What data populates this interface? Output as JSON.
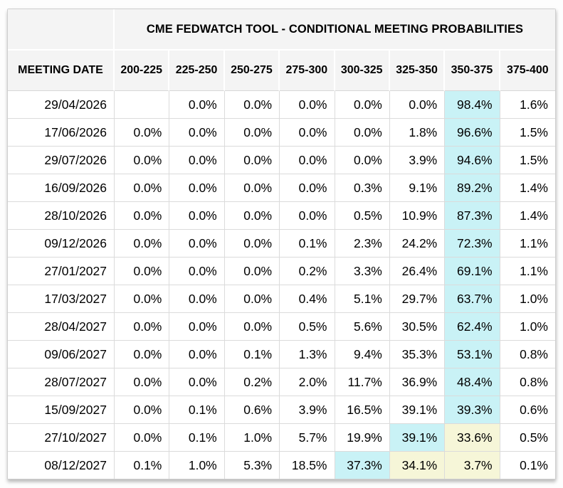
{
  "chart_data": {
    "type": "table",
    "title": "CME FEDWATCH TOOL - CONDITIONAL MEETING PROBABILITIES",
    "row_header_label": "MEETING DATE",
    "rate_bins": [
      "200-225",
      "225-250",
      "250-275",
      "275-300",
      "300-325",
      "325-350",
      "350-375",
      "375-400"
    ],
    "rows": [
      {
        "date": "29/04/2026",
        "values": [
          "",
          "0.0%",
          "0.0%",
          "0.0%",
          "0.0%",
          "0.0%",
          "98.4%",
          "1.6%"
        ],
        "highlights": [
          "",
          "",
          "",
          "",
          "",
          "",
          "cyan",
          ""
        ]
      },
      {
        "date": "17/06/2026",
        "values": [
          "0.0%",
          "0.0%",
          "0.0%",
          "0.0%",
          "0.0%",
          "1.8%",
          "96.6%",
          "1.5%"
        ],
        "highlights": [
          "",
          "",
          "",
          "",
          "",
          "",
          "cyan",
          ""
        ]
      },
      {
        "date": "29/07/2026",
        "values": [
          "0.0%",
          "0.0%",
          "0.0%",
          "0.0%",
          "0.0%",
          "3.9%",
          "94.6%",
          "1.5%"
        ],
        "highlights": [
          "",
          "",
          "",
          "",
          "",
          "",
          "cyan",
          ""
        ]
      },
      {
        "date": "16/09/2026",
        "values": [
          "0.0%",
          "0.0%",
          "0.0%",
          "0.0%",
          "0.3%",
          "9.1%",
          "89.2%",
          "1.4%"
        ],
        "highlights": [
          "",
          "",
          "",
          "",
          "",
          "",
          "cyan",
          ""
        ]
      },
      {
        "date": "28/10/2026",
        "values": [
          "0.0%",
          "0.0%",
          "0.0%",
          "0.0%",
          "0.5%",
          "10.9%",
          "87.3%",
          "1.4%"
        ],
        "highlights": [
          "",
          "",
          "",
          "",
          "",
          "",
          "cyan",
          ""
        ]
      },
      {
        "date": "09/12/2026",
        "values": [
          "0.0%",
          "0.0%",
          "0.0%",
          "0.1%",
          "2.3%",
          "24.2%",
          "72.3%",
          "1.1%"
        ],
        "highlights": [
          "",
          "",
          "",
          "",
          "",
          "",
          "cyan",
          ""
        ]
      },
      {
        "date": "27/01/2027",
        "values": [
          "0.0%",
          "0.0%",
          "0.0%",
          "0.2%",
          "3.3%",
          "26.4%",
          "69.1%",
          "1.1%"
        ],
        "highlights": [
          "",
          "",
          "",
          "",
          "",
          "",
          "cyan",
          ""
        ]
      },
      {
        "date": "17/03/2027",
        "values": [
          "0.0%",
          "0.0%",
          "0.0%",
          "0.4%",
          "5.1%",
          "29.7%",
          "63.7%",
          "1.0%"
        ],
        "highlights": [
          "",
          "",
          "",
          "",
          "",
          "",
          "cyan",
          ""
        ]
      },
      {
        "date": "28/04/2027",
        "values": [
          "0.0%",
          "0.0%",
          "0.0%",
          "0.5%",
          "5.6%",
          "30.5%",
          "62.4%",
          "1.0%"
        ],
        "highlights": [
          "",
          "",
          "",
          "",
          "",
          "",
          "cyan",
          ""
        ]
      },
      {
        "date": "09/06/2027",
        "values": [
          "0.0%",
          "0.0%",
          "0.1%",
          "1.3%",
          "9.4%",
          "35.3%",
          "53.1%",
          "0.8%"
        ],
        "highlights": [
          "",
          "",
          "",
          "",
          "",
          "",
          "cyan",
          ""
        ]
      },
      {
        "date": "28/07/2027",
        "values": [
          "0.0%",
          "0.0%",
          "0.2%",
          "2.0%",
          "11.7%",
          "36.9%",
          "48.4%",
          "0.8%"
        ],
        "highlights": [
          "",
          "",
          "",
          "",
          "",
          "",
          "cyan",
          ""
        ]
      },
      {
        "date": "15/09/2027",
        "values": [
          "0.0%",
          "0.1%",
          "0.6%",
          "3.9%",
          "16.5%",
          "39.1%",
          "39.3%",
          "0.6%"
        ],
        "highlights": [
          "",
          "",
          "",
          "",
          "",
          "",
          "cyan",
          ""
        ]
      },
      {
        "date": "27/10/2027",
        "values": [
          "0.0%",
          "0.1%",
          "1.0%",
          "5.7%",
          "19.9%",
          "39.1%",
          "33.6%",
          "0.5%"
        ],
        "highlights": [
          "",
          "",
          "",
          "",
          "",
          "cyan",
          "yellow",
          ""
        ]
      },
      {
        "date": "08/12/2027",
        "values": [
          "0.1%",
          "1.0%",
          "5.3%",
          "18.5%",
          "37.3%",
          "34.1%",
          "3.7%",
          "0.1%"
        ],
        "highlights": [
          "",
          "",
          "",
          "",
          "cyan",
          "yellow",
          "yellow",
          ""
        ]
      }
    ],
    "colors": {
      "highlight_cyan": "#C9F2F6",
      "highlight_yellow": "#F6F6D8",
      "header_bg": "#F4F4F4",
      "grid_line": "#DBDBDB",
      "card_border": "#CFCFCF"
    },
    "layout": {
      "grid": "on",
      "header_separator_color": "#FFFFFF",
      "value_alignment": "right"
    }
  }
}
